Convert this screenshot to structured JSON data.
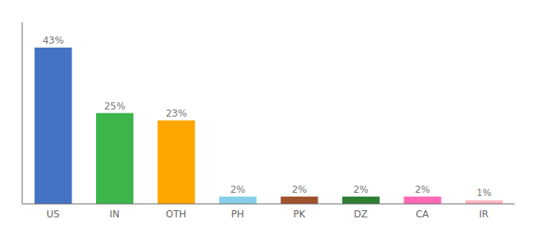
{
  "chart_data": {
    "type": "bar",
    "categories": [
      "US",
      "IN",
      "OTH",
      "PH",
      "PK",
      "DZ",
      "CA",
      "IR"
    ],
    "values": [
      43,
      25,
      23,
      2,
      2,
      2,
      2,
      1
    ],
    "value_labels": [
      "43%",
      "25%",
      "23%",
      "2%",
      "2%",
      "2%",
      "2%",
      "1%"
    ],
    "colors": [
      "#4472C4",
      "#3CB54A",
      "#FFA500",
      "#87CEEB",
      "#A0522D",
      "#2E7D32",
      "#FF69B4",
      "#FFB6C1"
    ],
    "ylim": [
      0,
      50
    ],
    "data_labels": true,
    "tick_labels": "x",
    "grid": false
  }
}
